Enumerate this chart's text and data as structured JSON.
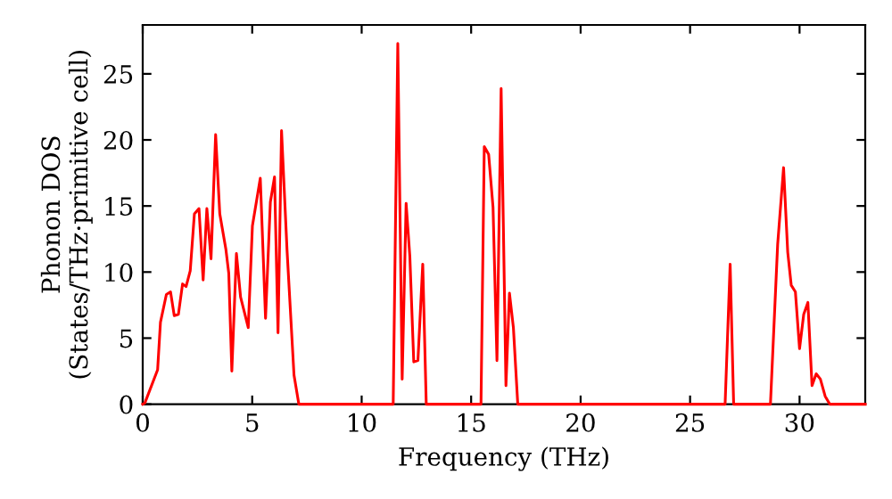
{
  "chart_data": {
    "type": "line",
    "xlabel": "Frequency (THz)",
    "ylabel": "Phonon DOS\n(States/THz·primitive cell)",
    "xlim": [
      0,
      33
    ],
    "ylim": [
      0,
      28.7
    ],
    "xticks": [
      0,
      5,
      10,
      15,
      20,
      25,
      30
    ],
    "yticks": [
      0,
      5,
      10,
      15,
      20,
      25
    ],
    "grid": false,
    "legend": false,
    "series": [
      {
        "color": "#ff0000",
        "x": [
          0,
          0.1,
          0.68,
          0.81,
          1.08,
          1.27,
          1.44,
          1.63,
          1.82,
          1.98,
          2.17,
          2.36,
          2.57,
          2.76,
          2.93,
          3.12,
          3.33,
          3.52,
          3.8,
          3.93,
          4.07,
          4.28,
          4.47,
          4.82,
          5.01,
          5.37,
          5.61,
          5.83,
          6.02,
          6.18,
          6.34,
          6.59,
          6.91,
          7.13,
          11.44,
          11.65,
          11.85,
          12.03,
          12.2,
          12.38,
          12.57,
          12.79,
          12.95,
          15.45,
          15.6,
          15.8,
          16.0,
          16.18,
          16.37,
          16.59,
          16.75,
          16.93,
          17.13,
          26.6,
          26.83,
          26.99,
          28.67,
          29.0,
          29.27,
          29.46,
          29.62,
          29.81,
          30.0,
          30.19,
          30.38,
          30.57,
          30.76,
          30.95,
          31.17,
          31.38,
          33
        ],
        "values": [
          0,
          0.1,
          2.6,
          6.2,
          8.3,
          8.5,
          6.7,
          6.8,
          9.1,
          8.9,
          10.1,
          14.4,
          14.8,
          9.4,
          14.8,
          11.0,
          20.4,
          14.4,
          11.7,
          9.9,
          2.5,
          11.4,
          8.1,
          5.8,
          13.5,
          17.1,
          6.5,
          15.3,
          17.2,
          5.4,
          20.7,
          11.7,
          2.2,
          0,
          0,
          27.3,
          1.9,
          15.2,
          11.2,
          3.2,
          3.3,
          10.6,
          0,
          0,
          19.5,
          18.9,
          14.9,
          3.3,
          23.9,
          1.4,
          8.4,
          5.8,
          0,
          0,
          10.6,
          0,
          0,
          12.1,
          17.9,
          11.5,
          9.0,
          8.5,
          4.2,
          6.8,
          7.7,
          1.4,
          2.3,
          1.9,
          0.6,
          0,
          0
        ]
      }
    ]
  }
}
